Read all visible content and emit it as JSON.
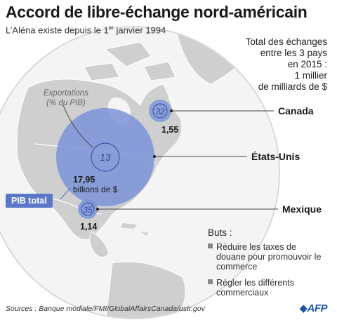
{
  "title": "Accord de libre-échange nord-américain",
  "subtitle": {
    "text": "L’Aléna existe depuis le 1",
    "sup": "er",
    "rest": " janvier 1994"
  },
  "total": {
    "line1": "Total des échanges",
    "line2": "entre les 3 pays",
    "line3": "en 2015 :",
    "line4": "1 millier",
    "line5": "de milliards de $"
  },
  "exports_label": {
    "line1": "Exportations",
    "line2": "(% du PIB)"
  },
  "pib_badge": "PIB total",
  "countries": [
    {
      "name": "Canada",
      "export_pct": "32",
      "pib": "1,55"
    },
    {
      "name": "États-Unis",
      "export_pct": "13",
      "pib": "17,95",
      "pib_unit": "billions de $"
    },
    {
      "name": "Mexique",
      "export_pct": "35",
      "pib": "1,14"
    }
  ],
  "goals": {
    "title": "Buts :",
    "items": [
      "Réduire les taxes de douane pour promouvoir le commerce",
      "Régler les différents commerciaux"
    ]
  },
  "sources": "Sources : Banque modiale/FMI/GlobalAffairsCanada/ustr.gov",
  "logo": "AFP",
  "colors": {
    "bubble": "#7e95d9",
    "badge": "#5b77c9",
    "land": "#cfcfcf",
    "sea": "#ffffff",
    "logo": "#1f56a8"
  }
}
